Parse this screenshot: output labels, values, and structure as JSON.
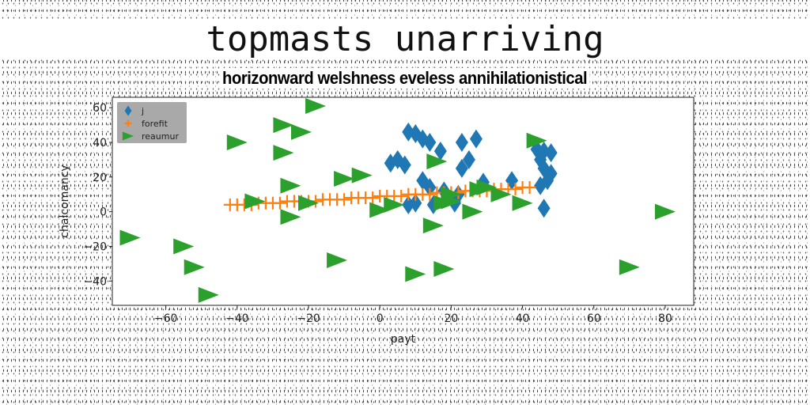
{
  "chart_data": {
    "type": "scatter",
    "title": "topmasts unarriving",
    "subtitle": "horizonward welshness eveless annihilationistical",
    "xlabel": "payt",
    "ylabel": "chalcomancy",
    "xlim": [
      -75,
      88
    ],
    "ylim": [
      -54,
      66
    ],
    "xticks": [
      -60,
      -40,
      -20,
      0,
      20,
      40,
      60,
      80
    ],
    "yticks": [
      -40,
      -20,
      0,
      20,
      40,
      60
    ],
    "legend_position": "top-left",
    "series": [
      {
        "name": "j",
        "marker": "diamond",
        "color": "#1f77b4",
        "points": [
          [
            8,
            46
          ],
          [
            10,
            45
          ],
          [
            12,
            42
          ],
          [
            14,
            40
          ],
          [
            17,
            35
          ],
          [
            23,
            40
          ],
          [
            27,
            42
          ],
          [
            25,
            30
          ],
          [
            23,
            25
          ],
          [
            3,
            28
          ],
          [
            5,
            30
          ],
          [
            7,
            27
          ],
          [
            12,
            18
          ],
          [
            14,
            14
          ],
          [
            18,
            12
          ],
          [
            22,
            10
          ],
          [
            10,
            5
          ],
          [
            15,
            4
          ],
          [
            21,
            5
          ],
          [
            8,
            4
          ],
          [
            29,
            17
          ],
          [
            37,
            18
          ],
          [
            44,
            36
          ],
          [
            46,
            35
          ],
          [
            48,
            34
          ],
          [
            45,
            30
          ],
          [
            46,
            25
          ],
          [
            48,
            22
          ],
          [
            47,
            18
          ],
          [
            45,
            15
          ],
          [
            46,
            2
          ]
        ]
      },
      {
        "name": "forefit",
        "marker": "plus",
        "color": "#ff7f0e",
        "points": [
          [
            -42,
            4
          ],
          [
            -40,
            4
          ],
          [
            -38,
            4
          ],
          [
            -36,
            4
          ],
          [
            -34,
            5
          ],
          [
            -32,
            5
          ],
          [
            -30,
            5
          ],
          [
            -28,
            5
          ],
          [
            -26,
            6
          ],
          [
            -24,
            6
          ],
          [
            -22,
            6
          ],
          [
            -20,
            6
          ],
          [
            -18,
            6
          ],
          [
            -16,
            7
          ],
          [
            -14,
            7
          ],
          [
            -12,
            7
          ],
          [
            -10,
            7
          ],
          [
            -8,
            8
          ],
          [
            -6,
            8
          ],
          [
            -4,
            8
          ],
          [
            -2,
            8
          ],
          [
            0,
            9
          ],
          [
            2,
            9
          ],
          [
            4,
            9
          ],
          [
            6,
            9
          ],
          [
            8,
            10
          ],
          [
            10,
            10
          ],
          [
            12,
            10
          ],
          [
            14,
            10
          ],
          [
            16,
            11
          ],
          [
            18,
            11
          ],
          [
            20,
            11
          ],
          [
            22,
            11
          ],
          [
            24,
            12
          ],
          [
            26,
            12
          ],
          [
            28,
            12
          ],
          [
            30,
            12
          ],
          [
            32,
            13
          ],
          [
            34,
            13
          ],
          [
            36,
            13
          ],
          [
            38,
            13
          ],
          [
            40,
            14
          ],
          [
            42,
            14
          ]
        ]
      },
      {
        "name": "reaumur",
        "marker": "triangle-right",
        "color": "#2ca02c",
        "points": [
          [
            -18,
            61
          ],
          [
            -27,
            50
          ],
          [
            -22,
            46
          ],
          [
            -40,
            40
          ],
          [
            -27,
            34
          ],
          [
            44,
            41
          ],
          [
            16,
            29
          ],
          [
            -5,
            21
          ],
          [
            -10,
            19
          ],
          [
            -25,
            15
          ],
          [
            -35,
            6
          ],
          [
            -20,
            5
          ],
          [
            0,
            1
          ],
          [
            4,
            4
          ],
          [
            18,
            5
          ],
          [
            20,
            6
          ],
          [
            20,
            10
          ],
          [
            28,
            13
          ],
          [
            30,
            14
          ],
          [
            34,
            10
          ],
          [
            40,
            5
          ],
          [
            26,
            0
          ],
          [
            -25,
            -3
          ],
          [
            15,
            -8
          ],
          [
            80,
            0
          ],
          [
            -70,
            -15
          ],
          [
            -55,
            -20
          ],
          [
            -52,
            -32
          ],
          [
            -48,
            -48
          ],
          [
            -12,
            -28
          ],
          [
            10,
            -36
          ],
          [
            18,
            -33
          ],
          [
            70,
            -32
          ]
        ]
      }
    ]
  }
}
